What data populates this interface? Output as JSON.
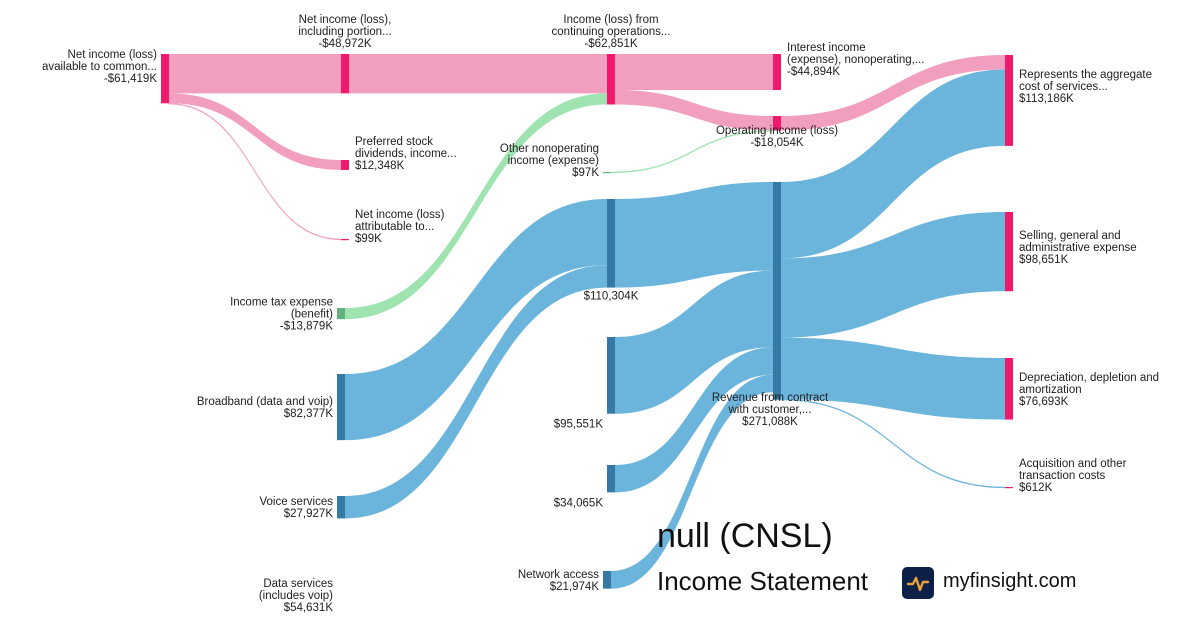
{
  "chart_data": {
    "type": "sankey",
    "units": "USD thousands",
    "nodes": [
      {
        "id": "ni_common",
        "label": [
          "Net income (loss)",
          "available to common..."
        ],
        "value_label": "-$61,419K",
        "value": -61419
      },
      {
        "id": "ni_incl",
        "label": [
          "Net income (loss),",
          "including portion..."
        ],
        "value_label": "-$48,972K",
        "value": -48972
      },
      {
        "id": "pref_div",
        "label": [
          "Preferred stock",
          "dividends, income..."
        ],
        "value_label": "$12,348K",
        "value": 12348
      },
      {
        "id": "ni_attr",
        "label": [
          "Net income (loss)",
          "attributable to..."
        ],
        "value_label": "$99K",
        "value": 99
      },
      {
        "id": "inc_cont",
        "label": [
          "Income (loss) from",
          "continuing operations..."
        ],
        "value_label": "-$62,851K",
        "value": -62851
      },
      {
        "id": "tax",
        "label": [
          "Income tax expense",
          "(benefit)"
        ],
        "value_label": "-$13,879K",
        "value": -13879
      },
      {
        "id": "other_nonop",
        "label": [
          "Other nonoperating",
          "income (expense)"
        ],
        "value_label": "$97K",
        "value": 97
      },
      {
        "id": "interest",
        "label": [
          "Interest income",
          "(expense), nonoperating,..."
        ],
        "value_label": "-$44,894K",
        "value": -44894
      },
      {
        "id": "op_inc",
        "label": [
          "Operating income (loss)"
        ],
        "value_label": "-$18,054K",
        "value": -18054
      },
      {
        "id": "broadband",
        "label": [
          "Broadband (data and voip)"
        ],
        "value_label": "$82,377K",
        "value": 82377
      },
      {
        "id": "voice",
        "label": [
          "Voice services"
        ],
        "value_label": "$27,927K",
        "value": 27927
      },
      {
        "id": "data_svc",
        "label": [
          "Data services",
          "(includes voip)"
        ],
        "value_label": "$54,631K",
        "value": 54631
      },
      {
        "id": "n110",
        "label": [],
        "value_label": "$110,304K",
        "value": 110304
      },
      {
        "id": "n95",
        "label": [],
        "value_label": "$95,551K",
        "value": 95551
      },
      {
        "id": "n34",
        "label": [],
        "value_label": "$34,065K",
        "value": 34065
      },
      {
        "id": "network",
        "label": [
          "Network access"
        ],
        "value_label": "$21,974K",
        "value": 21974
      },
      {
        "id": "revenue",
        "label": [
          "Revenue from contract",
          "with customer,..."
        ],
        "value_label": "$271,088K",
        "value": 271088
      },
      {
        "id": "cost_services",
        "label": [
          "Represents the aggregate",
          "cost of services..."
        ],
        "value_label": "$113,186K",
        "value": 113186
      },
      {
        "id": "sga",
        "label": [
          "Selling, general and",
          "administrative expense"
        ],
        "value_label": "$98,651K",
        "value": 98651
      },
      {
        "id": "dda",
        "label": [
          "Depreciation, depletion and",
          "amortization"
        ],
        "value_label": "$76,693K",
        "value": 76693
      },
      {
        "id": "acq",
        "label": [
          "Acquisition and other",
          "transaction costs"
        ],
        "value_label": "$612K",
        "value": 612
      }
    ],
    "links": [
      {
        "source": "ni_common",
        "target": "ni_incl",
        "value": 48972
      },
      {
        "source": "ni_common",
        "target": "pref_div",
        "value": 12348
      },
      {
        "source": "ni_common",
        "target": "ni_attr",
        "value": 99
      },
      {
        "source": "ni_incl",
        "target": "inc_cont",
        "value": 48972
      },
      {
        "source": "tax",
        "target": "inc_cont",
        "value": 13879
      },
      {
        "source": "inc_cont",
        "target": "interest",
        "value": 44894
      },
      {
        "source": "inc_cont",
        "target": "op_inc",
        "value": 18054
      },
      {
        "source": "other_nonop",
        "target": "op_inc",
        "value": 97
      },
      {
        "source": "op_inc",
        "target": "cost_services",
        "value": 18054
      },
      {
        "source": "broadband",
        "target": "n110",
        "value": 82377
      },
      {
        "source": "voice",
        "target": "n110",
        "value": 27927
      },
      {
        "source": "n110",
        "target": "revenue",
        "value": 110304
      },
      {
        "source": "n95",
        "target": "revenue",
        "value": 95551
      },
      {
        "source": "n34",
        "target": "revenue",
        "value": 34065
      },
      {
        "source": "network",
        "target": "revenue",
        "value": 21974
      },
      {
        "source": "revenue",
        "target": "cost_services",
        "value": 95132
      },
      {
        "source": "revenue",
        "target": "sga",
        "value": 98651
      },
      {
        "source": "revenue",
        "target": "dda",
        "value": 76693
      },
      {
        "source": "revenue",
        "target": "acq",
        "value": 612
      }
    ],
    "colors": {
      "expense_link": "#f29ebf",
      "expense_node": "#f0196d",
      "revenue_link": "#6bb5dc",
      "revenue_node": "#3579a4",
      "tax_link": "#9ee3b0",
      "tax_node": "#63b17c"
    }
  },
  "branding": {
    "company": "null (CNSL)",
    "statement": "Income Statement",
    "site": "myfinsight.com",
    "logo_icon": "pulse-line-icon"
  }
}
